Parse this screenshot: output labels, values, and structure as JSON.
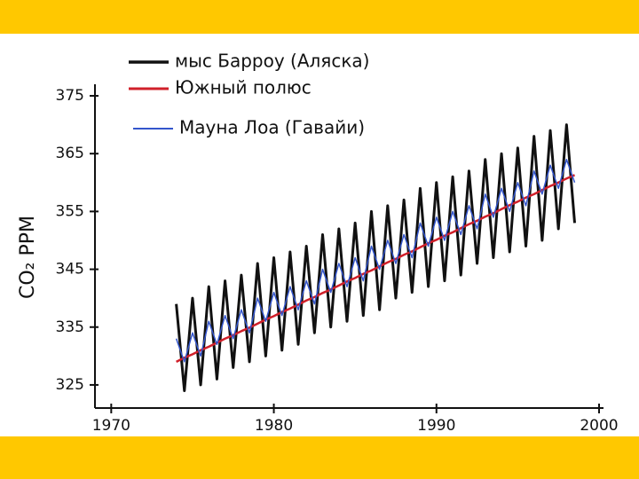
{
  "chart_data": {
    "type": "line",
    "y_label": "CO₂ PPM",
    "x": [
      1974,
      1974.5,
      1975,
      1975.5,
      1976,
      1976.5,
      1977,
      1977.5,
      1978,
      1978.5,
      1979,
      1979.5,
      1980,
      1980.5,
      1981,
      1981.5,
      1982,
      1982.5,
      1983,
      1983.5,
      1984,
      1984.5,
      1985,
      1985.5,
      1986,
      1986.5,
      1987,
      1987.5,
      1988,
      1988.5,
      1989,
      1989.5,
      1990,
      1990.5,
      1991,
      1991.5,
      1992,
      1992.5,
      1993,
      1993.5,
      1994,
      1994.5,
      1995,
      1995.5,
      1996,
      1996.5,
      1997,
      1997.5,
      1998,
      1998.5
    ],
    "series": [
      {
        "name": "мыс Барроу (Аляска)",
        "color": "#111111",
        "width": 3,
        "values": [
          339,
          324,
          340,
          325,
          342,
          326,
          343,
          328,
          344,
          329,
          346,
          330,
          347,
          331,
          348,
          332,
          349,
          334,
          351,
          335,
          352,
          336,
          353,
          337,
          355,
          338,
          356,
          340,
          357,
          341,
          359,
          342,
          360,
          343,
          361,
          344,
          362,
          346,
          364,
          347,
          365,
          348,
          366,
          349,
          368,
          350,
          369,
          352,
          370,
          353
        ]
      },
      {
        "name": "Южный полюс",
        "color": "#d0202a",
        "width": 2.5,
        "values": [
          329.0,
          329.7,
          330.3,
          331.0,
          331.6,
          332.3,
          333.0,
          333.6,
          334.3,
          334.9,
          335.6,
          336.3,
          336.9,
          337.6,
          338.2,
          338.9,
          339.6,
          340.2,
          340.9,
          341.5,
          342.2,
          342.9,
          343.5,
          344.2,
          344.8,
          345.5,
          346.2,
          346.8,
          347.5,
          348.1,
          348.8,
          349.5,
          350.1,
          350.8,
          351.4,
          352.1,
          352.8,
          353.4,
          354.1,
          354.7,
          355.4,
          356.1,
          356.7,
          357.4,
          358.0,
          358.7,
          359.4,
          360.0,
          360.7,
          361.3
        ]
      },
      {
        "name": "Мауна Лоа (Гавайи)",
        "color": "#3355cc",
        "width": 1.5,
        "values": [
          333,
          329,
          334,
          330,
          336,
          332,
          337,
          333,
          338,
          334,
          340,
          336,
          341,
          337,
          342,
          338,
          343,
          339,
          345,
          341,
          346,
          342,
          347,
          343,
          349,
          345,
          350,
          346,
          351,
          347,
          353,
          349,
          354,
          350,
          355,
          351,
          356,
          352,
          358,
          354,
          359,
          355,
          360,
          356,
          362,
          358,
          363,
          359,
          364,
          360
        ]
      }
    ],
    "xlim": [
      1969,
      2000
    ],
    "xticks": [
      1970,
      1980,
      1990,
      2000
    ],
    "ylim": [
      321,
      377
    ],
    "yticks": [
      325,
      335,
      345,
      355,
      365,
      375
    ]
  }
}
